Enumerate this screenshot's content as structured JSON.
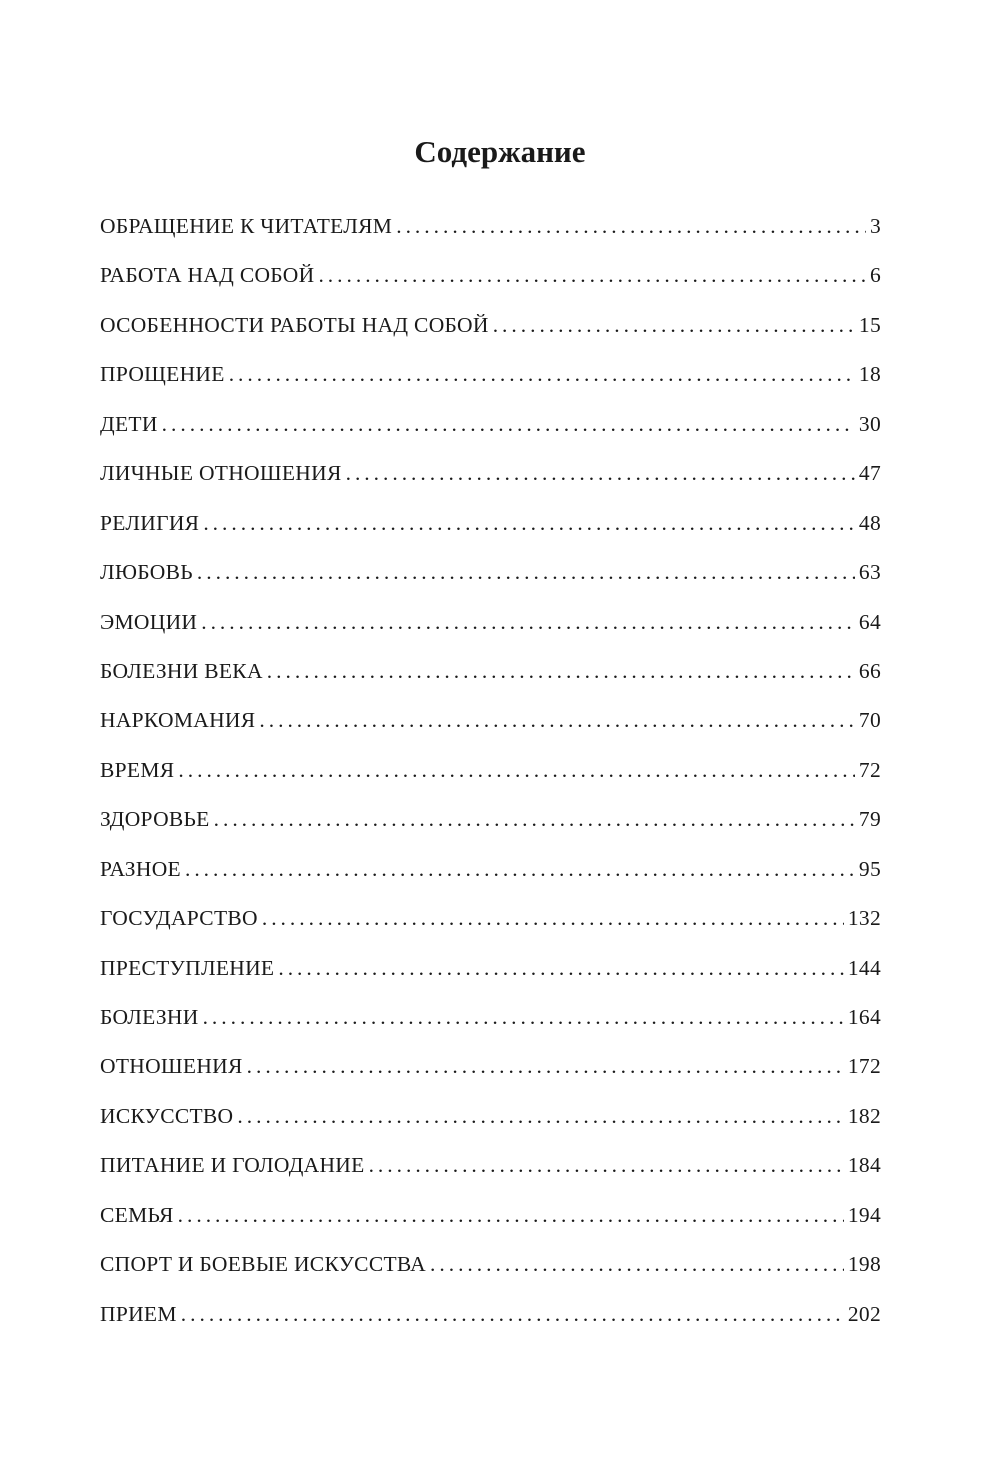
{
  "title": "Содержание",
  "entries": [
    {
      "label": "ОБРАЩЕНИЕ К ЧИТАТЕЛЯМ",
      "page": "3"
    },
    {
      "label": "РАБОТА НАД СОБОЙ",
      "page": "6"
    },
    {
      "label": "ОСОБЕННОСТИ РАБОТЫ НАД СОБОЙ",
      "page": "15"
    },
    {
      "label": "ПРОЩЕНИЕ",
      "page": "18"
    },
    {
      "label": "ДЕТИ",
      "page": "30"
    },
    {
      "label": "ЛИЧНЫЕ ОТНОШЕНИЯ",
      "page": "47"
    },
    {
      "label": "РЕЛИГИЯ",
      "page": "48"
    },
    {
      "label": "ЛЮБОВЬ",
      "page": "63"
    },
    {
      "label": "ЭМОЦИИ",
      "page": "64"
    },
    {
      "label": "БОЛЕЗНИ ВЕКА",
      "page": "66"
    },
    {
      "label": "НАРКОМАНИЯ",
      "page": "70"
    },
    {
      "label": "ВРЕМЯ",
      "page": "72"
    },
    {
      "label": "ЗДОРОВЬЕ",
      "page": "79"
    },
    {
      "label": "РАЗНОЕ",
      "page": "95"
    },
    {
      "label": "ГОСУДАРСТВО",
      "page": "132"
    },
    {
      "label": "ПРЕСТУПЛЕНИЕ",
      "page": "144"
    },
    {
      "label": "БОЛЕЗНИ",
      "page": "164"
    },
    {
      "label": "ОТНОШЕНИЯ",
      "page": "172"
    },
    {
      "label": "ИСКУССТВО",
      "page": "182"
    },
    {
      "label": "ПИТАНИЕ И ГОЛОДАНИЕ",
      "page": "184"
    },
    {
      "label": "СЕМЬЯ",
      "page": "194"
    },
    {
      "label": "СПОРТ И БОЕВЫЕ ИСКУССТВА",
      "page": "198"
    },
    {
      "label": "ПРИЕМ",
      "page": "202"
    }
  ]
}
